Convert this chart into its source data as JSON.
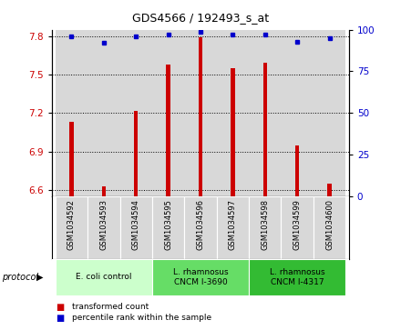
{
  "title": "GDS4566 / 192493_s_at",
  "samples": [
    "GSM1034592",
    "GSM1034593",
    "GSM1034594",
    "GSM1034595",
    "GSM1034596",
    "GSM1034597",
    "GSM1034598",
    "GSM1034599",
    "GSM1034600"
  ],
  "transformed_count": [
    7.13,
    6.63,
    7.22,
    7.58,
    7.79,
    7.55,
    7.59,
    6.95,
    6.65
  ],
  "percentile_rank": [
    96,
    92,
    96,
    97,
    99,
    97,
    97,
    93,
    95
  ],
  "ylim_left": [
    6.55,
    7.85
  ],
  "ylim_right": [
    0,
    100
  ],
  "yticks_left": [
    6.6,
    6.9,
    7.2,
    7.5,
    7.8
  ],
  "yticks_right": [
    0,
    25,
    50,
    75,
    100
  ],
  "bar_color": "#cc0000",
  "dot_color": "#0000cc",
  "bar_width": 0.12,
  "groups": [
    {
      "label": "E. coli control",
      "indices": [
        0,
        1,
        2
      ],
      "color": "#ccffcc"
    },
    {
      "label": "L. rhamnosus\nCNCM I-3690",
      "indices": [
        3,
        4,
        5
      ],
      "color": "#66dd66"
    },
    {
      "label": "L. rhamnosus\nCNCM I-4317",
      "indices": [
        6,
        7,
        8
      ],
      "color": "#33bb33"
    }
  ],
  "legend_bar_label": "transformed count",
  "legend_dot_label": "percentile rank within the sample",
  "protocol_label": "protocol",
  "tick_label_color_left": "#cc0000",
  "tick_label_color_right": "#0000cc",
  "cell_bg_color": "#d8d8d8",
  "chart_bg_color": "#ffffff"
}
